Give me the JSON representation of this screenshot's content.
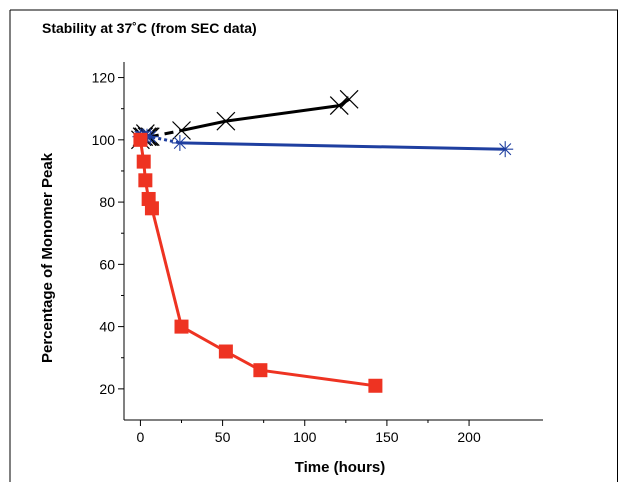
{
  "chart_data": {
    "type": "line",
    "title": "Stability at 37˚C (from SEC data)",
    "xlabel": "Time (hours)",
    "ylabel": "Percentage of Monomer Peak",
    "xlim": [
      -10,
      245
    ],
    "ylim": [
      10,
      125
    ],
    "xticks": [
      0,
      50,
      100,
      150,
      200
    ],
    "yticks": [
      20,
      40,
      60,
      80,
      100,
      120
    ],
    "grid": false,
    "legend": "none",
    "series": [
      {
        "marker": "x",
        "color": "#000000",
        "line_style": "dashed-then-solid",
        "x": [
          0,
          1,
          2,
          3,
          4,
          5,
          6,
          25,
          52,
          121,
          127
        ],
        "y": [
          100,
          101,
          101,
          102,
          101,
          101,
          101,
          103,
          106,
          111,
          113
        ]
      },
      {
        "marker": "asterisk",
        "color": "#1f3fa0",
        "line_style": "dotted-then-solid",
        "x": [
          0,
          1,
          2,
          4,
          6,
          24,
          222
        ],
        "y": [
          101,
          101,
          101,
          101,
          101,
          99,
          97
        ]
      },
      {
        "marker": "square",
        "color": "#ee3322",
        "line_style": "solid",
        "x": [
          0,
          2,
          3,
          5,
          7,
          25,
          52,
          73,
          143
        ],
        "y": [
          100,
          93,
          87,
          81,
          78,
          40,
          32,
          26,
          21
        ]
      }
    ]
  }
}
